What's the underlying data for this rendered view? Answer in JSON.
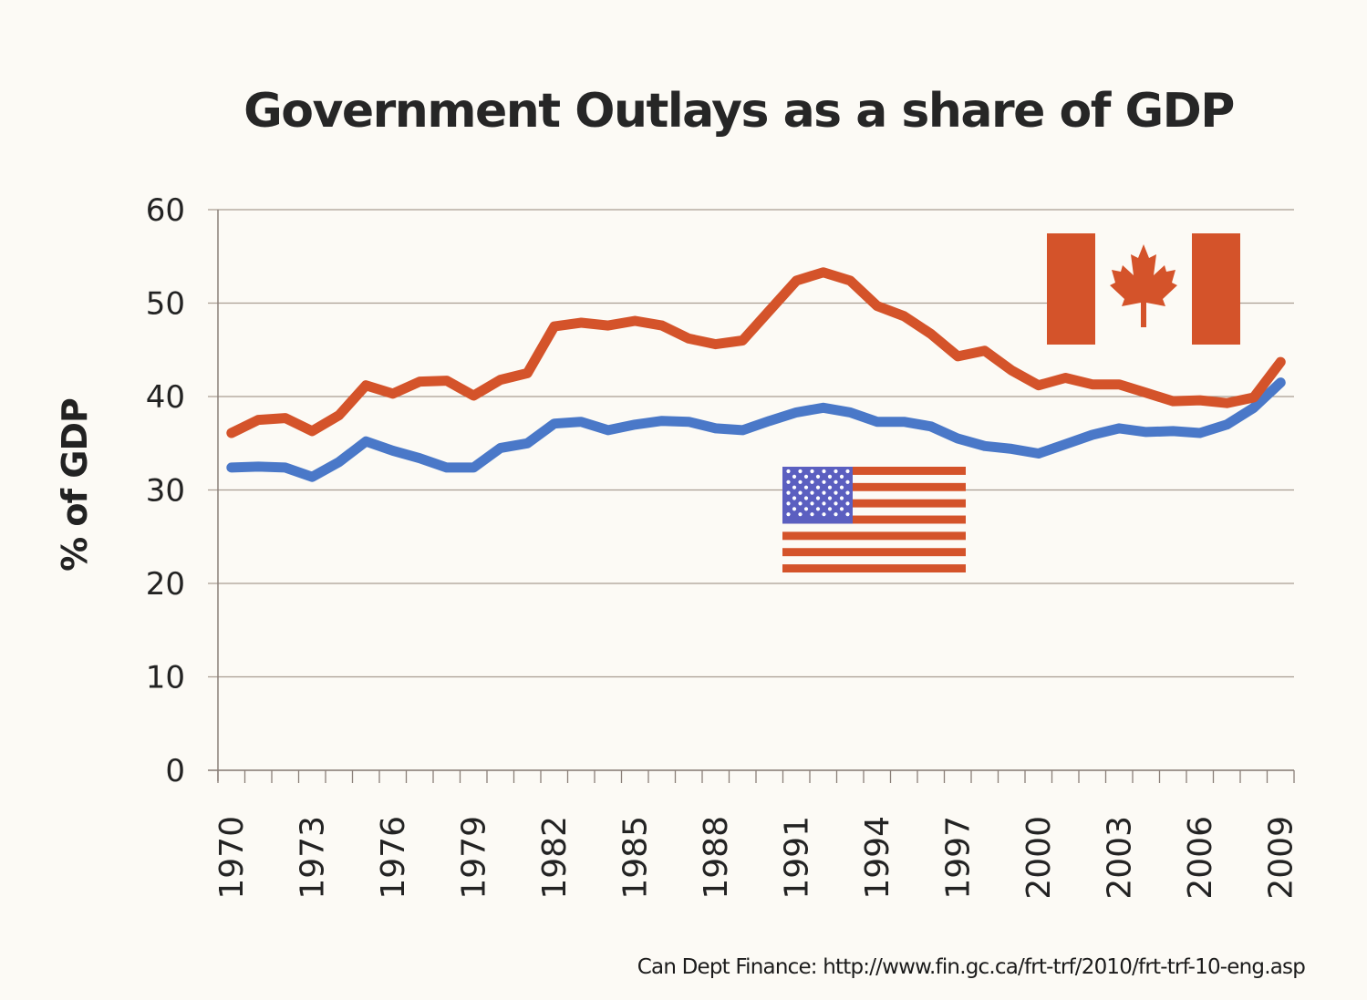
{
  "chart_data": {
    "type": "line",
    "title": "Government Outlays as a share of GDP",
    "xlabel": "",
    "ylabel": "% of GDP",
    "ylim": [
      0,
      60
    ],
    "yticks": [
      "0",
      "10",
      "20",
      "30",
      "40",
      "50",
      "60"
    ],
    "grid": true,
    "categories": [
      "1970",
      "1971",
      "1972",
      "1973",
      "1974",
      "1975",
      "1976",
      "1977",
      "1978",
      "1979",
      "1980",
      "1981",
      "1982",
      "1983",
      "1984",
      "1985",
      "1986",
      "1987",
      "1988",
      "1989",
      "1990",
      "1991",
      "1992",
      "1993",
      "1994",
      "1995",
      "1996",
      "1997",
      "1998",
      "1999",
      "2000",
      "2001",
      "2002",
      "2003",
      "2004",
      "2005",
      "2006",
      "2007",
      "2008",
      "2009"
    ],
    "xtick_labels": [
      "1970",
      "1973",
      "1976",
      "1979",
      "1982",
      "1985",
      "1988",
      "1991",
      "1994",
      "1997",
      "2000",
      "2003",
      "2006",
      "2009"
    ],
    "series": [
      {
        "name": "Canada",
        "color": "#d4532a",
        "legend_icon": "canada-flag",
        "values": [
          36.1,
          37.5,
          37.7,
          36.3,
          38.0,
          41.2,
          40.3,
          41.6,
          41.7,
          40.1,
          41.8,
          42.5,
          47.5,
          47.9,
          47.6,
          48.1,
          47.6,
          46.2,
          45.6,
          46.0,
          49.2,
          52.4,
          53.3,
          52.4,
          49.7,
          48.6,
          46.7,
          44.3,
          44.9,
          42.8,
          41.2,
          42.0,
          41.3,
          41.3,
          40.4,
          39.5,
          39.6,
          39.3,
          39.9,
          43.7
        ]
      },
      {
        "name": "United States",
        "color": "#4a78c8",
        "legend_icon": "us-flag",
        "values": [
          32.4,
          32.5,
          32.4,
          31.4,
          33.0,
          35.2,
          34.2,
          33.4,
          32.4,
          32.4,
          34.5,
          35.0,
          37.1,
          37.3,
          36.4,
          37.0,
          37.4,
          37.3,
          36.6,
          36.4,
          37.4,
          38.3,
          38.8,
          38.3,
          37.3,
          37.3,
          36.8,
          35.5,
          34.7,
          34.4,
          33.9,
          34.9,
          35.9,
          36.6,
          36.2,
          36.3,
          36.1,
          37.0,
          38.8,
          41.5
        ]
      }
    ],
    "legend": "flag images placed next to lines (Canada top-right, US center)",
    "source": "Can Dept Finance: http://www.fin.gc.ca/frt-trf/2010/frt-trf-10-eng.asp"
  },
  "colors": {
    "background": "#fcfaf5",
    "gridline": "#a89e92",
    "canada_red": "#d4532a",
    "us_blue": "#4a78c8",
    "us_canton": "#5b5fc0"
  }
}
